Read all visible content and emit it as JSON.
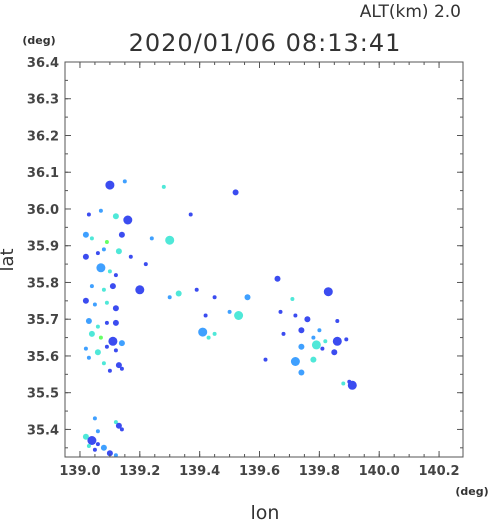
{
  "chart_data": {
    "type": "scatter",
    "title": "2020/01/06 08:13:41",
    "subtitle": "ALT(km) 2.0",
    "xlabel": "lon",
    "ylabel": "lat",
    "x_unit": "(deg)",
    "y_unit": "(deg)",
    "xlim": [
      138.95,
      140.28
    ],
    "ylim": [
      35.325,
      36.4
    ],
    "x_ticks": [
      "139.0",
      "139.2",
      "139.4",
      "139.6",
      "139.8",
      "140.0",
      "140.2"
    ],
    "y_ticks": [
      "35.4",
      "35.5",
      "35.6",
      "35.7",
      "35.8",
      "35.9",
      "36.0",
      "36.1",
      "36.2",
      "36.3",
      "36.4"
    ],
    "grid": false,
    "colors": {
      "low": "#3b4cf0",
      "mid": "#3fa0ff",
      "high": "#4fe8d8",
      "peak": "#66ff66",
      "axis": "#555555"
    },
    "series": [
      {
        "points": [
          [
            139.1,
            36.065
          ],
          [
            139.15,
            36.075
          ],
          [
            139.28,
            36.06
          ],
          [
            139.52,
            36.045
          ],
          [
            139.03,
            35.985
          ],
          [
            139.07,
            35.995
          ],
          [
            139.12,
            35.98
          ],
          [
            139.16,
            35.97
          ],
          [
            139.37,
            35.985
          ],
          [
            139.02,
            35.93
          ],
          [
            139.04,
            35.92
          ],
          [
            139.09,
            35.91
          ],
          [
            139.14,
            35.93
          ],
          [
            139.24,
            35.92
          ],
          [
            139.3,
            35.915
          ],
          [
            139.02,
            35.87
          ],
          [
            139.06,
            35.88
          ],
          [
            139.08,
            35.89
          ],
          [
            139.13,
            35.885
          ],
          [
            139.17,
            35.87
          ],
          [
            139.22,
            35.85
          ],
          [
            139.07,
            35.84
          ],
          [
            139.1,
            35.83
          ],
          [
            139.12,
            35.82
          ],
          [
            139.66,
            35.81
          ],
          [
            139.04,
            35.79
          ],
          [
            139.08,
            35.78
          ],
          [
            139.11,
            35.79
          ],
          [
            139.2,
            35.78
          ],
          [
            139.3,
            35.76
          ],
          [
            139.33,
            35.77
          ],
          [
            139.39,
            35.78
          ],
          [
            139.45,
            35.76
          ],
          [
            139.56,
            35.76
          ],
          [
            139.71,
            35.755
          ],
          [
            139.83,
            35.775
          ],
          [
            139.02,
            35.75
          ],
          [
            139.05,
            35.74
          ],
          [
            139.09,
            35.745
          ],
          [
            139.12,
            35.73
          ],
          [
            139.42,
            35.71
          ],
          [
            139.5,
            35.72
          ],
          [
            139.53,
            35.71
          ],
          [
            139.67,
            35.72
          ],
          [
            139.72,
            35.71
          ],
          [
            139.03,
            35.695
          ],
          [
            139.06,
            35.68
          ],
          [
            139.09,
            35.69
          ],
          [
            139.12,
            35.69
          ],
          [
            139.41,
            35.665
          ],
          [
            139.45,
            35.66
          ],
          [
            139.76,
            35.7
          ],
          [
            139.86,
            35.695
          ],
          [
            139.8,
            35.67
          ],
          [
            139.04,
            35.66
          ],
          [
            139.07,
            35.65
          ],
          [
            139.11,
            35.64
          ],
          [
            139.14,
            35.635
          ],
          [
            139.43,
            35.65
          ],
          [
            139.68,
            35.66
          ],
          [
            139.74,
            35.67
          ],
          [
            139.78,
            35.65
          ],
          [
            139.82,
            35.64
          ],
          [
            139.86,
            35.64
          ],
          [
            139.89,
            35.645
          ],
          [
            139.02,
            35.62
          ],
          [
            139.06,
            35.61
          ],
          [
            139.09,
            35.625
          ],
          [
            139.12,
            35.615
          ],
          [
            139.74,
            35.625
          ],
          [
            139.79,
            35.63
          ],
          [
            139.81,
            35.62
          ],
          [
            139.85,
            35.61
          ],
          [
            139.03,
            35.595
          ],
          [
            139.08,
            35.58
          ],
          [
            139.13,
            35.575
          ],
          [
            139.62,
            35.59
          ],
          [
            139.72,
            35.585
          ],
          [
            139.78,
            35.59
          ],
          [
            139.1,
            35.56
          ],
          [
            139.14,
            35.565
          ],
          [
            139.74,
            35.555
          ],
          [
            139.88,
            35.525
          ],
          [
            139.9,
            35.53
          ],
          [
            139.91,
            35.52
          ],
          [
            139.05,
            35.43
          ],
          [
            139.12,
            35.42
          ],
          [
            139.13,
            35.41
          ],
          [
            139.14,
            35.4
          ],
          [
            139.06,
            35.395
          ],
          [
            139.02,
            35.38
          ],
          [
            139.04,
            35.37
          ],
          [
            139.06,
            35.36
          ],
          [
            139.08,
            35.35
          ],
          [
            139.03,
            35.355
          ],
          [
            139.05,
            35.345
          ],
          [
            139.1,
            35.335
          ],
          [
            139.12,
            35.33
          ]
        ]
      }
    ]
  }
}
